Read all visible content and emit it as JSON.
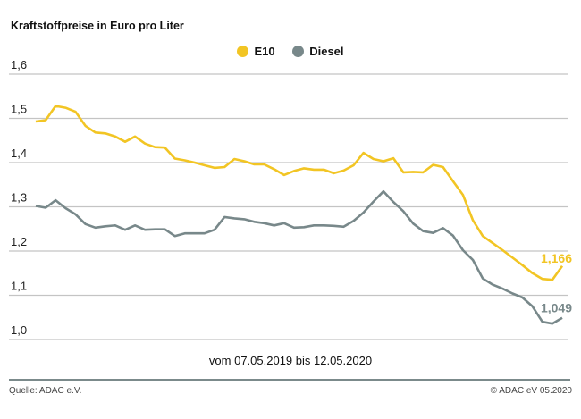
{
  "chart_data": {
    "type": "line",
    "title": "Kraftstoffpreise in Euro pro Liter",
    "xlabel": "vom 07.05.2019 bis 12.05.2020",
    "ylabel": "",
    "ylim": [
      1.0,
      1.6
    ],
    "yticks": [
      "1,6",
      "1,5",
      "1,4",
      "1,3",
      "1,2",
      "1,1",
      "1,0"
    ],
    "ytick_values": [
      1.6,
      1.5,
      1.4,
      1.3,
      1.2,
      1.1,
      1.0
    ],
    "grid": true,
    "legend_position": "top-center",
    "x_start": "07.05.2019",
    "x_end": "12.05.2020",
    "x_interval": "weekly",
    "series": [
      {
        "name": "E10",
        "color": "#f2c524",
        "end_label": "1,166",
        "values": [
          1.493,
          1.496,
          1.528,
          1.524,
          1.515,
          1.483,
          1.468,
          1.466,
          1.459,
          1.447,
          1.459,
          1.443,
          1.435,
          1.434,
          1.409,
          1.405,
          1.4,
          1.394,
          1.388,
          1.39,
          1.408,
          1.403,
          1.396,
          1.396,
          1.385,
          1.372,
          1.381,
          1.387,
          1.384,
          1.384,
          1.376,
          1.382,
          1.394,
          1.422,
          1.408,
          1.403,
          1.41,
          1.378,
          1.379,
          1.378,
          1.395,
          1.39,
          1.358,
          1.327,
          1.27,
          1.234,
          1.218,
          1.202,
          1.185,
          1.168,
          1.15,
          1.137,
          1.135,
          1.166
        ]
      },
      {
        "name": "Diesel",
        "color": "#78888a",
        "end_label": "1,049",
        "values": [
          1.302,
          1.298,
          1.315,
          1.297,
          1.283,
          1.261,
          1.253,
          1.256,
          1.258,
          1.248,
          1.258,
          1.248,
          1.249,
          1.249,
          1.234,
          1.24,
          1.24,
          1.24,
          1.248,
          1.277,
          1.274,
          1.272,
          1.266,
          1.263,
          1.258,
          1.263,
          1.253,
          1.254,
          1.258,
          1.258,
          1.257,
          1.255,
          1.268,
          1.287,
          1.312,
          1.335,
          1.311,
          1.29,
          1.262,
          1.245,
          1.241,
          1.252,
          1.235,
          1.202,
          1.18,
          1.138,
          1.124,
          1.115,
          1.104,
          1.095,
          1.075,
          1.04,
          1.036,
          1.049
        ]
      }
    ]
  },
  "footer": {
    "source": "Quelle: ADAC e.V.",
    "copyright": "© ADAC eV 05.2020"
  }
}
